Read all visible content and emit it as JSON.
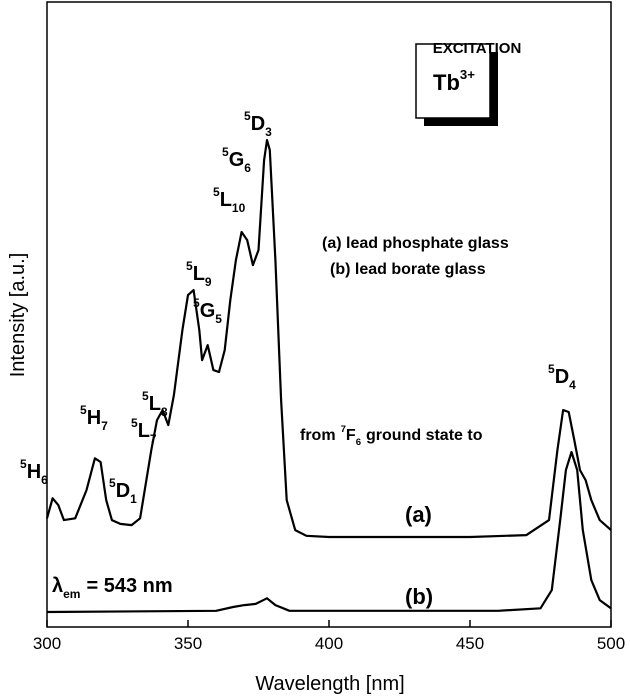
{
  "chart_data": {
    "type": "line",
    "x_label": "Wavelength [nm]",
    "y_label": "Intensity [a.u.]",
    "xlim": [
      300,
      500
    ],
    "xticks": [
      300,
      350,
      400,
      450,
      500
    ],
    "ylim": [
      0,
      100
    ],
    "yticks": [],
    "series": [
      {
        "name": "(a)",
        "color": "#000000",
        "x": [
          300,
          302,
          304,
          306,
          310,
          314,
          317,
          319,
          321,
          323,
          326,
          330,
          333,
          337,
          339,
          341,
          343,
          345,
          348,
          350,
          352,
          354,
          355,
          357,
          359,
          361,
          363,
          365,
          367,
          369,
          371,
          373,
          375,
          377,
          378,
          379,
          381,
          383,
          385,
          388,
          392,
          400,
          450,
          470,
          478,
          481,
          483,
          485,
          487,
          489,
          491,
          493,
          496,
          500
        ],
        "values": [
          17.4,
          20.6,
          19.5,
          17.1,
          17.4,
          21.9,
          27.0,
          26.4,
          20.3,
          17.1,
          16.5,
          16.3,
          17.4,
          28.3,
          33.1,
          34.7,
          32.3,
          37.1,
          47.5,
          53.1,
          53.9,
          47.5,
          42.7,
          45.1,
          41.1,
          40.8,
          44.3,
          52.3,
          58.7,
          63.2,
          61.9,
          57.9,
          60.3,
          74.7,
          77.9,
          76.3,
          58.7,
          36.3,
          20.3,
          15.5,
          14.6,
          14.4,
          14.4,
          14.7,
          17.1,
          28.3,
          34.7,
          34.4,
          29.9,
          25.1,
          23.5,
          20.3,
          17.1,
          15.5
        ]
      },
      {
        "name": "(b)",
        "color": "#000000",
        "x": [
          300,
          360,
          366,
          370,
          374,
          378,
          381,
          386,
          460,
          475,
          479,
          482,
          484,
          486,
          488,
          490,
          493,
          496,
          500
        ],
        "values": [
          2.4,
          2.6,
          3.2,
          3.5,
          3.7,
          4.6,
          3.5,
          2.6,
          2.6,
          3.0,
          5.9,
          17.1,
          25.1,
          28.0,
          25.1,
          15.5,
          7.5,
          4.3,
          3.0
        ]
      }
    ],
    "annotations": {
      "title": "EXCITATION",
      "ion": {
        "base": "Tb",
        "sup": "3+"
      },
      "legend": [
        "(a) lead phosphate glass",
        "(b) lead borate glass"
      ],
      "transition": {
        "pre": "from",
        "sup": "7",
        "base": "F",
        "sub": "6",
        "post": "ground state to"
      },
      "emission": {
        "base": "λ",
        "sub": "em",
        "post": "= 543 nm"
      },
      "terms": [
        {
          "sup": "5",
          "base": "H",
          "sub": "6"
        },
        {
          "sup": "5",
          "base": "H",
          "sub": "7"
        },
        {
          "sup": "5",
          "base": "D",
          "sub": "1"
        },
        {
          "sup": "5",
          "base": "L",
          "sub": "7"
        },
        {
          "sup": "5",
          "base": "L",
          "sub": "8"
        },
        {
          "sup": "5",
          "base": "L",
          "sub": "9"
        },
        {
          "sup": "5",
          "base": "G",
          "sub": "5"
        },
        {
          "sup": "5",
          "base": "L",
          "sub": "10"
        },
        {
          "sup": "5",
          "base": "G",
          "sub": "6"
        },
        {
          "sup": "5",
          "base": "D",
          "sub": "3"
        },
        {
          "sup": "5",
          "base": "D",
          "sub": "4"
        }
      ]
    }
  }
}
